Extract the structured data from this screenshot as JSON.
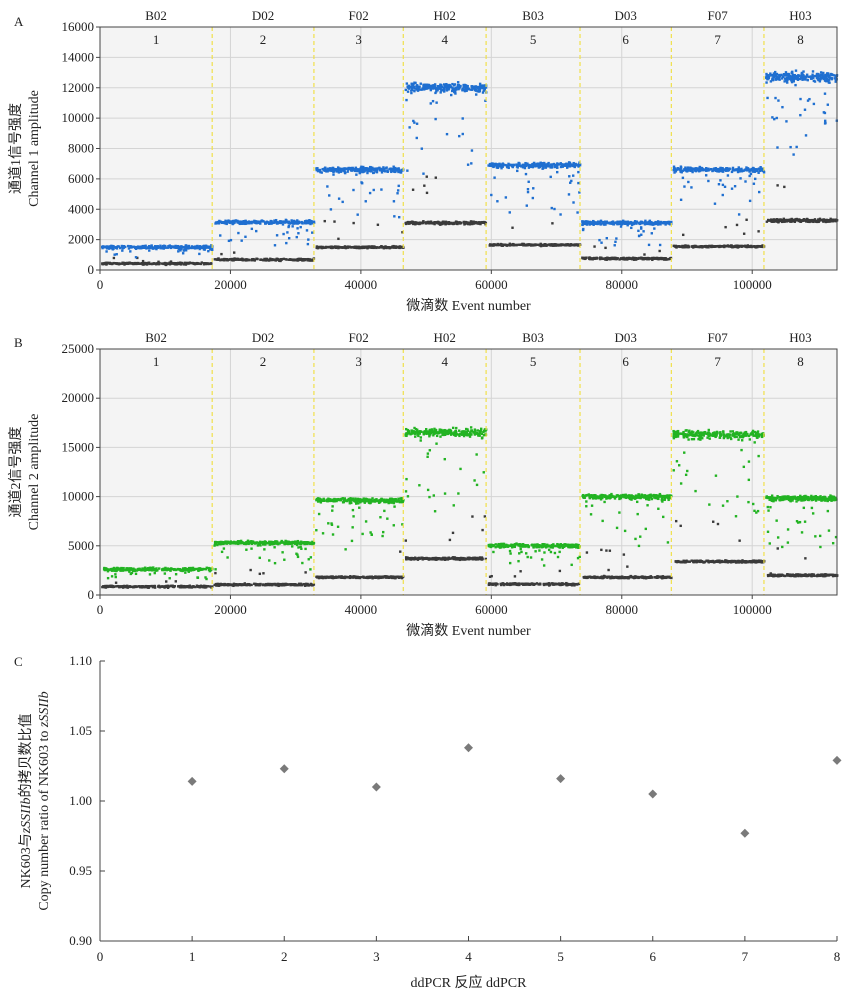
{
  "chart_data": [
    {
      "panel": "A",
      "type": "scatter",
      "ylabel_cn": "通道1信号强度",
      "ylabel_en": "Channel 1 amplitude",
      "xlabel": "微滴数 Event number",
      "xlim": [
        0,
        113000
      ],
      "ylim": [
        0,
        16000
      ],
      "xticks": [
        0,
        20000,
        40000,
        60000,
        80000,
        100000
      ],
      "yticks": [
        0,
        2000,
        4000,
        6000,
        8000,
        10000,
        12000,
        14000,
        16000
      ],
      "grid": true,
      "positive_color": "#1f6fd0",
      "negative_color": "#3a3a3a",
      "wells": [
        {
          "label": "B02",
          "number": "1",
          "x_start": 0,
          "x_end": 17200,
          "positive_amplitude": 1500,
          "negative_amplitude": 420
        },
        {
          "label": "D02",
          "number": "2",
          "x_start": 17200,
          "x_end": 32800,
          "positive_amplitude": 3150,
          "negative_amplitude": 680
        },
        {
          "label": "F02",
          "number": "3",
          "x_start": 32800,
          "x_end": 46500,
          "positive_amplitude": 6600,
          "negative_amplitude": 1500
        },
        {
          "label": "H02",
          "number": "4",
          "x_start": 46500,
          "x_end": 59200,
          "positive_amplitude": 12000,
          "negative_amplitude": 3100
        },
        {
          "label": "B03",
          "number": "5",
          "x_start": 59200,
          "x_end": 73600,
          "positive_amplitude": 6900,
          "negative_amplitude": 1650
        },
        {
          "label": "D03",
          "number": "6",
          "x_start": 73600,
          "x_end": 87600,
          "positive_amplitude": 3100,
          "negative_amplitude": 750
        },
        {
          "label": "F07",
          "number": "7",
          "x_start": 87600,
          "x_end": 101800,
          "positive_amplitude": 6600,
          "negative_amplitude": 1550
        },
        {
          "label": "H03",
          "number": "8",
          "x_start": 101800,
          "x_end": 113000,
          "positive_amplitude": 12700,
          "negative_amplitude": 3250
        }
      ]
    },
    {
      "panel": "B",
      "type": "scatter",
      "ylabel_cn": "通道2信号强度",
      "ylabel_en": "Channel 2 amplitude",
      "xlabel": "微滴数 Event number",
      "xlim": [
        0,
        113000
      ],
      "ylim": [
        0,
        25000
      ],
      "xticks": [
        0,
        20000,
        40000,
        60000,
        80000,
        100000
      ],
      "yticks": [
        0,
        5000,
        10000,
        15000,
        20000,
        25000
      ],
      "grid": true,
      "positive_color": "#22b322",
      "negative_color": "#3a3a3a",
      "wells": [
        {
          "label": "B02",
          "number": "1",
          "x_start": 0,
          "x_end": 17200,
          "positive_amplitude": 2600,
          "negative_amplitude": 850
        },
        {
          "label": "D02",
          "number": "2",
          "x_start": 17200,
          "x_end": 32800,
          "positive_amplitude": 5300,
          "negative_amplitude": 1050
        },
        {
          "label": "F02",
          "number": "3",
          "x_start": 32800,
          "x_end": 46500,
          "positive_amplitude": 9600,
          "negative_amplitude": 1800
        },
        {
          "label": "H02",
          "number": "4",
          "x_start": 46500,
          "x_end": 59200,
          "positive_amplitude": 16500,
          "negative_amplitude": 3700
        },
        {
          "label": "B03",
          "number": "5",
          "x_start": 59200,
          "x_end": 73600,
          "positive_amplitude": 5000,
          "negative_amplitude": 1100
        },
        {
          "label": "D03",
          "number": "6",
          "x_start": 73600,
          "x_end": 87600,
          "positive_amplitude": 10000,
          "negative_amplitude": 1800
        },
        {
          "label": "F07",
          "number": "7",
          "x_start": 87600,
          "x_end": 101800,
          "positive_amplitude": 16300,
          "negative_amplitude": 3400
        },
        {
          "label": "H03",
          "number": "8",
          "x_start": 101800,
          "x_end": 113000,
          "positive_amplitude": 9800,
          "negative_amplitude": 2000
        }
      ]
    },
    {
      "panel": "C",
      "type": "scatter",
      "ylabel_cn_prefix": "NK603与",
      "ylabel_cn_italic": "zSSIIb",
      "ylabel_cn_suffix": "的拷贝数比值",
      "ylabel_en_prefix": "Copy number ratio of NK603 to ",
      "ylabel_en_italic": "zSSIIb",
      "xlabel": "ddPCR 反应 ddPCR",
      "xlim": [
        0,
        8
      ],
      "ylim": [
        0.9,
        1.1
      ],
      "xticks": [
        0,
        1,
        2,
        3,
        4,
        5,
        6,
        7,
        8
      ],
      "yticks": [
        "0.90",
        "0.95",
        "1.00",
        "1.05",
        "1.10"
      ],
      "grid": false,
      "marker_color": "#7a7a7a",
      "x": [
        1,
        2,
        3,
        4,
        5,
        6,
        7,
        8
      ],
      "y": [
        1.014,
        1.023,
        1.01,
        1.038,
        1.016,
        1.005,
        0.977,
        1.029
      ]
    }
  ]
}
